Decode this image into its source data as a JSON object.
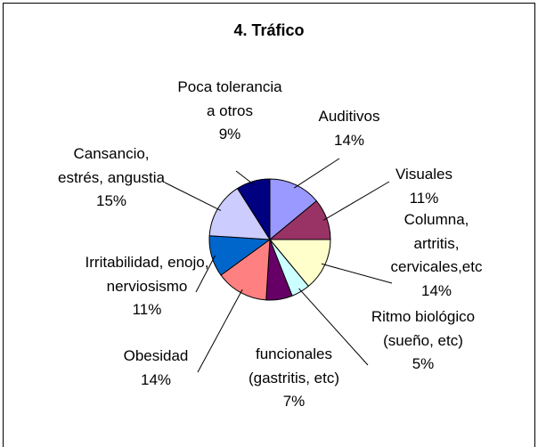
{
  "chart_data": {
    "type": "pie",
    "title": "4. Tráfico",
    "categories": [
      "Auditivos",
      "Visuales",
      "Columna, artritis, cervicales,etc",
      "Ritmo biológico (sueño, etc)",
      "funcionales (gastritis, etc)",
      "Obesidad",
      "Irritabilidad, enojo, nerviosismo",
      "Cansancio, estrés, angustia",
      "Poca tolerancia a otros"
    ],
    "values": [
      14,
      11,
      14,
      5,
      7,
      14,
      11,
      15,
      9
    ],
    "value_labels": [
      "14%",
      "11%",
      "14%",
      "5%",
      "7%",
      "14%",
      "11%",
      "15%",
      "9%"
    ],
    "colors": [
      "#9999ff",
      "#993366",
      "#ffffcc",
      "#ccffff",
      "#660066",
      "#ff8080",
      "#0066cc",
      "#ccccff",
      "#000080"
    ]
  }
}
